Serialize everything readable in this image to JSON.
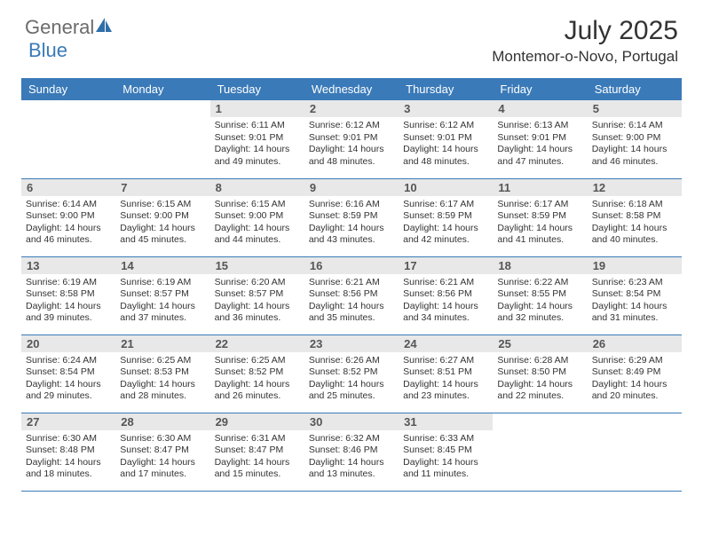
{
  "brand": {
    "part1": "General",
    "part2": "Blue"
  },
  "title": "July 2025",
  "location": "Montemor-o-Novo, Portugal",
  "colors": {
    "header_bg": "#3a7ab8",
    "header_text": "#ffffff",
    "daynum_bg": "#e8e8e8",
    "border": "#3a7ab8",
    "body_text": "#333333",
    "logo_gray": "#6b6b6b",
    "logo_blue": "#3a7ab8"
  },
  "day_headers": [
    "Sunday",
    "Monday",
    "Tuesday",
    "Wednesday",
    "Thursday",
    "Friday",
    "Saturday"
  ],
  "weeks": [
    [
      null,
      null,
      {
        "d": "1",
        "sr": "6:11 AM",
        "ss": "9:01 PM",
        "dl": "14 hours and 49 minutes."
      },
      {
        "d": "2",
        "sr": "6:12 AM",
        "ss": "9:01 PM",
        "dl": "14 hours and 48 minutes."
      },
      {
        "d": "3",
        "sr": "6:12 AM",
        "ss": "9:01 PM",
        "dl": "14 hours and 48 minutes."
      },
      {
        "d": "4",
        "sr": "6:13 AM",
        "ss": "9:01 PM",
        "dl": "14 hours and 47 minutes."
      },
      {
        "d": "5",
        "sr": "6:14 AM",
        "ss": "9:00 PM",
        "dl": "14 hours and 46 minutes."
      }
    ],
    [
      {
        "d": "6",
        "sr": "6:14 AM",
        "ss": "9:00 PM",
        "dl": "14 hours and 46 minutes."
      },
      {
        "d": "7",
        "sr": "6:15 AM",
        "ss": "9:00 PM",
        "dl": "14 hours and 45 minutes."
      },
      {
        "d": "8",
        "sr": "6:15 AM",
        "ss": "9:00 PM",
        "dl": "14 hours and 44 minutes."
      },
      {
        "d": "9",
        "sr": "6:16 AM",
        "ss": "8:59 PM",
        "dl": "14 hours and 43 minutes."
      },
      {
        "d": "10",
        "sr": "6:17 AM",
        "ss": "8:59 PM",
        "dl": "14 hours and 42 minutes."
      },
      {
        "d": "11",
        "sr": "6:17 AM",
        "ss": "8:59 PM",
        "dl": "14 hours and 41 minutes."
      },
      {
        "d": "12",
        "sr": "6:18 AM",
        "ss": "8:58 PM",
        "dl": "14 hours and 40 minutes."
      }
    ],
    [
      {
        "d": "13",
        "sr": "6:19 AM",
        "ss": "8:58 PM",
        "dl": "14 hours and 39 minutes."
      },
      {
        "d": "14",
        "sr": "6:19 AM",
        "ss": "8:57 PM",
        "dl": "14 hours and 37 minutes."
      },
      {
        "d": "15",
        "sr": "6:20 AM",
        "ss": "8:57 PM",
        "dl": "14 hours and 36 minutes."
      },
      {
        "d": "16",
        "sr": "6:21 AM",
        "ss": "8:56 PM",
        "dl": "14 hours and 35 minutes."
      },
      {
        "d": "17",
        "sr": "6:21 AM",
        "ss": "8:56 PM",
        "dl": "14 hours and 34 minutes."
      },
      {
        "d": "18",
        "sr": "6:22 AM",
        "ss": "8:55 PM",
        "dl": "14 hours and 32 minutes."
      },
      {
        "d": "19",
        "sr": "6:23 AM",
        "ss": "8:54 PM",
        "dl": "14 hours and 31 minutes."
      }
    ],
    [
      {
        "d": "20",
        "sr": "6:24 AM",
        "ss": "8:54 PM",
        "dl": "14 hours and 29 minutes."
      },
      {
        "d": "21",
        "sr": "6:25 AM",
        "ss": "8:53 PM",
        "dl": "14 hours and 28 minutes."
      },
      {
        "d": "22",
        "sr": "6:25 AM",
        "ss": "8:52 PM",
        "dl": "14 hours and 26 minutes."
      },
      {
        "d": "23",
        "sr": "6:26 AM",
        "ss": "8:52 PM",
        "dl": "14 hours and 25 minutes."
      },
      {
        "d": "24",
        "sr": "6:27 AM",
        "ss": "8:51 PM",
        "dl": "14 hours and 23 minutes."
      },
      {
        "d": "25",
        "sr": "6:28 AM",
        "ss": "8:50 PM",
        "dl": "14 hours and 22 minutes."
      },
      {
        "d": "26",
        "sr": "6:29 AM",
        "ss": "8:49 PM",
        "dl": "14 hours and 20 minutes."
      }
    ],
    [
      {
        "d": "27",
        "sr": "6:30 AM",
        "ss": "8:48 PM",
        "dl": "14 hours and 18 minutes."
      },
      {
        "d": "28",
        "sr": "6:30 AM",
        "ss": "8:47 PM",
        "dl": "14 hours and 17 minutes."
      },
      {
        "d": "29",
        "sr": "6:31 AM",
        "ss": "8:47 PM",
        "dl": "14 hours and 15 minutes."
      },
      {
        "d": "30",
        "sr": "6:32 AM",
        "ss": "8:46 PM",
        "dl": "14 hours and 13 minutes."
      },
      {
        "d": "31",
        "sr": "6:33 AM",
        "ss": "8:45 PM",
        "dl": "14 hours and 11 minutes."
      },
      null,
      null
    ]
  ],
  "labels": {
    "sunrise": "Sunrise: ",
    "sunset": "Sunset: ",
    "daylight": "Daylight: "
  }
}
